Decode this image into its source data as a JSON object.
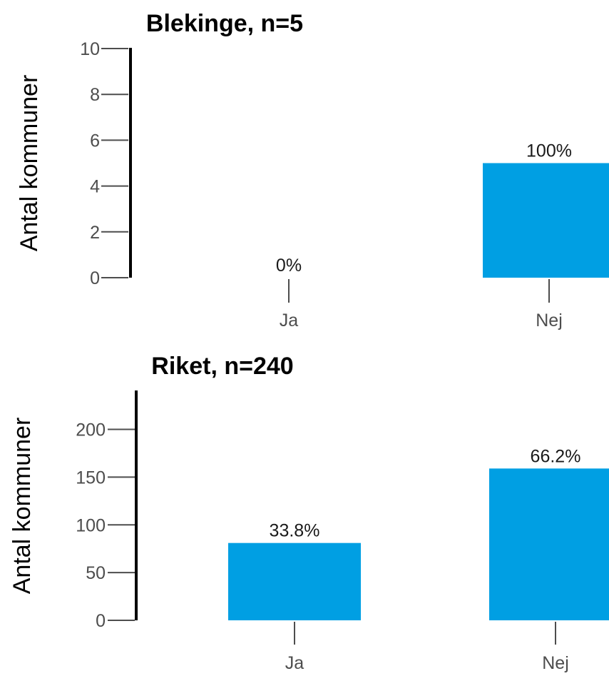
{
  "chart_data": [
    {
      "type": "bar",
      "title": "Blekinge, n=5",
      "xlabel": "",
      "ylabel": "Antal kommuner",
      "categories": [
        "Ja",
        "Nej"
      ],
      "values": [
        0,
        5
      ],
      "data_labels": [
        "0%",
        "100%"
      ],
      "ylim": [
        0,
        10
      ],
      "yticks": [
        0,
        2,
        4,
        6,
        8,
        10
      ],
      "bar_color": "#009fe3",
      "grid": false,
      "legend": "none"
    },
    {
      "type": "bar",
      "title": "Riket, n=240",
      "xlabel": "",
      "ylabel": "Antal kommuner",
      "categories": [
        "Ja",
        "Nej"
      ],
      "values": [
        81,
        159
      ],
      "data_labels": [
        "33.8%",
        "66.2%"
      ],
      "ylim": [
        0,
        240
      ],
      "yticks": [
        0,
        50,
        100,
        150,
        200
      ],
      "bar_color": "#009fe3",
      "grid": false,
      "legend": "none"
    }
  ]
}
